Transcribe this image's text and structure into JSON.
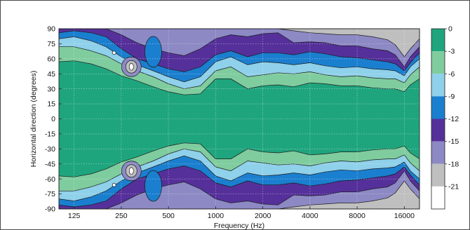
{
  "chart_data": {
    "type": "heatmap",
    "subtype": "filled-contour",
    "title": "",
    "xlabel": "Frequency (Hz)",
    "ylabel": "Horizontal direction (degrees)",
    "x_scale": "log",
    "x_ticks": [
      "125",
      "250",
      "500",
      "1000",
      "2000",
      "4000",
      "8000",
      "16000"
    ],
    "x_tick_values": [
      125,
      250,
      500,
      1000,
      2000,
      4000,
      8000,
      16000
    ],
    "xlim": [
      100,
      20000
    ],
    "y_ticks": [
      "90",
      "75",
      "60",
      "45",
      "30",
      "15",
      "0",
      "-15",
      "-30",
      "-45",
      "-60",
      "-75",
      "-90"
    ],
    "y_tick_values": [
      90,
      75,
      60,
      45,
      30,
      15,
      0,
      -15,
      -30,
      -45,
      -60,
      -75,
      -90
    ],
    "ylim": [
      -90,
      90
    ],
    "grid": true,
    "symmetric_about_zero": true,
    "colorbar": {
      "levels": [
        0,
        -3,
        -6,
        -9,
        -12,
        -15,
        -18,
        -21
      ],
      "labels": [
        "0",
        "-3",
        "-6",
        "-9",
        "-12",
        "-15",
        "-18",
        "-21"
      ],
      "colors": [
        "#1fa57e",
        "#7fcc9f",
        "#8fd0ea",
        "#1b7fcf",
        "#55309a",
        "#8c89c4",
        "#bfbfbf",
        "#ffffff"
      ]
    },
    "contour_boundaries": {
      "frequencies_hz": [
        100,
        125,
        160,
        200,
        250,
        315,
        400,
        500,
        630,
        800,
        1000,
        1250,
        1600,
        2000,
        2500,
        3150,
        4000,
        5000,
        6300,
        8000,
        10000,
        12500,
        14000,
        16000,
        17500,
        20000
      ],
      "db_levels": [
        -3,
        -6,
        -9,
        -12,
        -15,
        -18
      ],
      "angles_deg": [
        [
          57,
          58,
          55,
          50,
          43,
          38,
          32,
          27,
          24,
          25,
          40,
          40,
          30,
          33,
          34,
          32,
          36,
          35,
          33,
          33,
          31,
          30,
          30,
          27,
          34,
          40
        ],
        [
          72,
          72,
          68,
          63,
          55,
          48,
          42,
          35,
          30,
          33,
          48,
          52,
          42,
          44,
          46,
          45,
          47,
          44,
          42,
          43,
          41,
          40,
          40,
          36,
          44,
          52
        ],
        [
          80,
          82,
          78,
          72,
          62,
          54,
          48,
          42,
          37,
          42,
          57,
          62,
          54,
          57,
          56,
          54,
          56,
          53,
          51,
          52,
          50,
          49,
          48,
          43,
          52,
          60
        ],
        [
          86,
          88,
          86,
          82,
          70,
          60,
          55,
          50,
          47,
          52,
          64,
          68,
          62,
          66,
          66,
          64,
          67,
          65,
          62,
          61,
          59,
          57,
          55,
          48,
          56,
          66
        ],
        [
          90,
          90,
          90,
          90,
          84,
          76,
          70,
          66,
          63,
          70,
          80,
          84,
          82,
          85,
          86,
          76,
          77,
          76,
          73,
          73,
          70,
          68,
          64,
          52,
          62,
          72
        ],
        [
          90,
          90,
          90,
          90,
          90,
          90,
          90,
          90,
          90,
          90,
          90,
          90,
          90,
          90,
          90,
          88,
          86,
          85,
          84,
          84,
          82,
          79,
          74,
          62,
          70,
          80
        ]
      ]
    },
    "local_features": [
      {
        "frequency_hz": 290,
        "angle_deg": 52,
        "note": "small enclosed low-level spot near +/-52 degrees"
      },
      {
        "frequency_hz": 400,
        "angle_deg": 67,
        "note": "enclosed -12 dB island near +/-67 degrees"
      },
      {
        "frequency_hz": 225,
        "angle_deg": 66,
        "note": "tiny point near +/-66 degrees"
      }
    ]
  }
}
